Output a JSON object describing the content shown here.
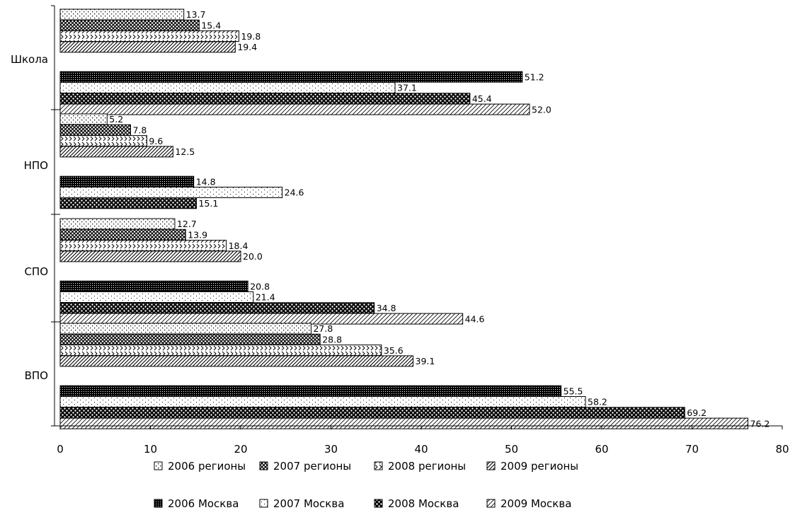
{
  "chart_data": {
    "type": "bar",
    "orientation": "horizontal",
    "categories": [
      "Школа",
      "НПО",
      "СПО",
      "ВПО"
    ],
    "series": [
      {
        "name": "2006 регионы",
        "values": [
          13.7,
          5.2,
          12.7,
          27.8
        ],
        "pattern": "dots-sparse"
      },
      {
        "name": "2007 регионы",
        "values": [
          15.4,
          7.8,
          13.9,
          28.8
        ],
        "pattern": "crosshatch"
      },
      {
        "name": "2008 регионы",
        "values": [
          19.8,
          9.6,
          18.4,
          35.6
        ],
        "pattern": "chevron"
      },
      {
        "name": "2009 регионы",
        "values": [
          19.4,
          12.5,
          20.0,
          39.1
        ],
        "pattern": "diagonal"
      },
      {
        "name": "2006 Москва",
        "values": [
          51.2,
          14.8,
          20.8,
          55.5
        ],
        "pattern": "dense-dark"
      },
      {
        "name": "2007 Москва",
        "values": [
          37.1,
          24.6,
          21.4,
          58.2
        ],
        "pattern": "dots-light"
      },
      {
        "name": "2008 Москва",
        "values": [
          45.4,
          15.1,
          34.8,
          69.2
        ],
        "pattern": "dots-heavy"
      },
      {
        "name": "2009 Москва",
        "values": [
          52.0,
          null,
          44.6,
          76.2
        ],
        "pattern": "diagonal-light"
      }
    ],
    "data_labels": [
      [
        "13.7",
        "5.2",
        "12.7",
        "27.8"
      ],
      [
        "15.4",
        "7.8",
        "13.9",
        "28.8"
      ],
      [
        "19.8",
        "9.6",
        "18.4",
        "35.6"
      ],
      [
        "19.4",
        "12.5",
        "20.0",
        "39.1"
      ],
      [
        "51.2",
        "14.8",
        "20.8",
        "55.5"
      ],
      [
        "37.1",
        "24.6",
        "21.4",
        "58.2"
      ],
      [
        "45.4",
        "15.1",
        "34.8",
        "69.2"
      ],
      [
        "52.0",
        null,
        "44.6",
        "76.2"
      ]
    ],
    "xlim": [
      0,
      80
    ],
    "xticks": [
      0,
      10,
      20,
      30,
      40,
      50,
      60,
      70,
      80
    ],
    "xtick_labels": [
      "0",
      "10",
      "20",
      "30",
      "40",
      "50",
      "60",
      "70",
      "80"
    ],
    "title": "",
    "xlabel": "",
    "ylabel": "",
    "grid": false,
    "legend_placement": "bottom",
    "legend_rows": [
      [
        "2006 регионы",
        "2007 регионы",
        "2008 регионы",
        "2009 регионы"
      ],
      [
        "2006 Москва",
        "2007 Москва",
        "2008 Москва",
        "2009 Москва"
      ]
    ]
  }
}
